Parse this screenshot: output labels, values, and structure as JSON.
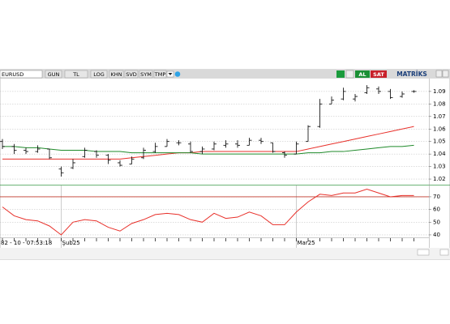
{
  "toolbar": {
    "symbol": "EURUSD",
    "buttons": [
      "GUN",
      "TL",
      "LOG",
      "KHN",
      "SVD",
      "SYM",
      "TMP"
    ],
    "buy": "AL",
    "sell": "SAT",
    "brand": "MATRİKS"
  },
  "status": "82 - 10 - 07:53:18",
  "chart_data": [
    {
      "type": "ohlc",
      "color": "#000000",
      "categories": [
        null,
        null,
        null,
        null,
        null,
        "Şub25",
        null,
        null,
        null,
        null,
        null,
        null,
        null,
        null,
        null,
        null,
        null,
        null,
        null,
        null,
        null,
        null,
        null,
        null,
        null,
        "Mar25",
        null,
        null,
        null,
        null,
        null,
        null,
        null,
        null,
        null,
        null
      ],
      "open": [
        1.05,
        1.046,
        1.043,
        1.042,
        1.044,
        1.028,
        1.029,
        1.038,
        1.042,
        1.039,
        1.033,
        1.032,
        1.037,
        1.042,
        1.046,
        1.049,
        1.048,
        1.042,
        1.044,
        1.047,
        1.048,
        1.047,
        1.051,
        1.049,
        1.041,
        1.04,
        1.05,
        1.062,
        1.08,
        1.084,
        1.084,
        1.089,
        1.092,
        1.09,
        1.086,
        1.09
      ],
      "high": [
        1.052,
        1.048,
        1.045,
        1.047,
        1.044,
        1.03,
        1.036,
        1.045,
        1.043,
        1.04,
        1.035,
        1.038,
        1.045,
        1.049,
        1.052,
        1.051,
        1.05,
        1.046,
        1.05,
        1.051,
        1.051,
        1.053,
        1.053,
        1.049,
        1.042,
        1.05,
        1.063,
        1.084,
        1.086,
        1.093,
        1.088,
        1.095,
        1.094,
        1.092,
        1.09,
        1.091
      ],
      "low": [
        1.044,
        1.04,
        1.04,
        1.041,
        1.036,
        1.022,
        1.028,
        1.037,
        1.037,
        1.032,
        1.03,
        1.032,
        1.036,
        1.041,
        1.046,
        1.047,
        1.041,
        1.04,
        1.043,
        1.045,
        1.045,
        1.047,
        1.048,
        1.041,
        1.037,
        1.04,
        1.05,
        1.061,
        1.08,
        1.083,
        1.082,
        1.088,
        1.088,
        1.084,
        1.085,
        1.089
      ],
      "close": [
        1.046,
        1.043,
        1.042,
        1.044,
        1.037,
        1.025,
        1.033,
        1.043,
        1.039,
        1.035,
        1.031,
        1.036,
        1.043,
        1.046,
        1.05,
        1.049,
        1.042,
        1.044,
        1.048,
        1.048,
        1.047,
        1.051,
        1.05,
        1.042,
        1.039,
        1.048,
        1.062,
        1.08,
        1.083,
        1.09,
        1.086,
        1.093,
        1.09,
        1.085,
        1.088,
        1.09
      ],
      "lines": [
        {
          "color": "#e8302a",
          "values": [
            1.036,
            1.036,
            1.036,
            1.036,
            1.036,
            1.036,
            1.036,
            1.036,
            1.036,
            1.036,
            1.036,
            1.037,
            1.038,
            1.039,
            1.04,
            1.041,
            1.041,
            1.042,
            1.042,
            1.042,
            1.042,
            1.042,
            1.042,
            1.042,
            1.042,
            1.042,
            1.044,
            1.046,
            1.048,
            1.05,
            1.052,
            1.054,
            1.056,
            1.058,
            1.06,
            1.062
          ]
        },
        {
          "color": "#1f8a2a",
          "values": [
            1.046,
            1.046,
            1.045,
            1.045,
            1.044,
            1.043,
            1.043,
            1.043,
            1.042,
            1.042,
            1.042,
            1.041,
            1.041,
            1.041,
            1.041,
            1.041,
            1.041,
            1.04,
            1.04,
            1.04,
            1.04,
            1.04,
            1.04,
            1.04,
            1.04,
            1.04,
            1.041,
            1.041,
            1.042,
            1.042,
            1.043,
            1.044,
            1.045,
            1.046,
            1.046,
            1.047
          ]
        }
      ],
      "ylim": [
        1.0155,
        1.099
      ],
      "yticks": [
        1.02,
        1.03,
        1.04,
        1.05,
        1.06,
        1.07,
        1.08,
        1.09
      ],
      "grid": true
    },
    {
      "type": "line",
      "color": "#e8302a",
      "values": [
        62,
        55,
        52,
        51,
        47,
        40,
        50,
        52,
        51,
        46,
        43,
        49,
        52,
        56,
        57,
        56,
        52,
        50,
        57,
        53,
        54,
        58,
        55,
        48,
        48,
        58,
        66,
        72,
        71,
        73,
        73,
        76,
        73,
        70,
        71,
        71
      ],
      "refline": 70,
      "refcolor": "#c0392b",
      "ylim": [
        38.7,
        78.9
      ],
      "yticks": [
        40,
        50,
        60,
        70
      ],
      "grid": true
    }
  ]
}
